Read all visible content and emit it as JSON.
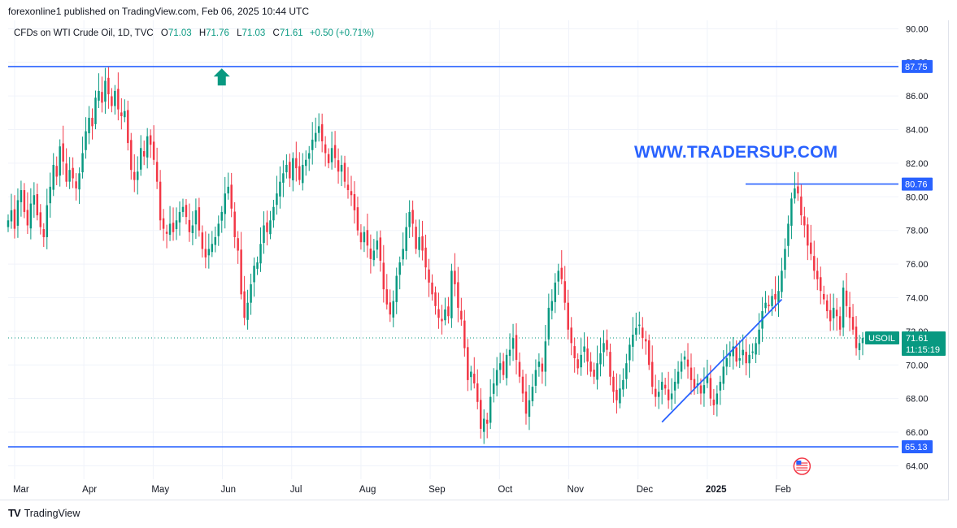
{
  "header": {
    "publisher_line": "forexonline1 published on TradingView.com, Feb 06, 2025 10:44 UTC"
  },
  "legend": {
    "symbol_desc": "CFDs on WTI Crude Oil, 1D, TVC",
    "o_label": "O",
    "o_value": "71.03",
    "h_label": "H",
    "h_value": "71.76",
    "l_label": "L",
    "l_value": "71.03",
    "c_label": "C",
    "c_value": "71.61",
    "change": "+0.50 (+0.71%)"
  },
  "annotation_text": "WWW.TRADERSUP.COM",
  "footer": {
    "brand": "TradingView",
    "logo": "TV"
  },
  "colors": {
    "up": "#089981",
    "down": "#f23645",
    "line": "#2962ff",
    "grid": "#f0f3fa",
    "price_tag": "#089981"
  },
  "chart_data": {
    "type": "candlestick",
    "y_range": [
      63.2,
      90.5
    ],
    "y_ticks": [
      "64.00",
      "66.00",
      "68.00",
      "70.00",
      "72.00",
      "74.00",
      "76.00",
      "78.00",
      "80.00",
      "82.00",
      "84.00",
      "86.00",
      "88.00",
      "90.00"
    ],
    "x_labels": [
      "Mar",
      "Apr",
      "May",
      "Jun",
      "Jul",
      "Aug",
      "Sep",
      "Oct",
      "Nov",
      "Dec",
      "2025",
      "Feb"
    ],
    "horizontal_levels": [
      {
        "value": 87.75,
        "label": "87.75",
        "span": "full"
      },
      {
        "value": 80.76,
        "label": "80.76",
        "span": "partial"
      },
      {
        "value": 65.13,
        "label": "65.13",
        "span": "full"
      }
    ],
    "trendline": {
      "from": {
        "date": "2024-12-09",
        "value": 66.6
      },
      "to": {
        "date": "2025-01-29",
        "value": 73.9
      }
    },
    "current_price": {
      "symbol": "USOIL",
      "value": "71.61",
      "countdown": "11:15:19",
      "numeric": 71.61
    },
    "up_arrow_marker": {
      "date": "2024-05-31",
      "value": 87.2
    },
    "closes": [
      78.6,
      79.2,
      78.1,
      79.8,
      80.4,
      79.1,
      78.3,
      79.6,
      80.1,
      78.9,
      78.2,
      77.6,
      79.5,
      80.6,
      81.9,
      81.2,
      83.0,
      82.1,
      80.9,
      81.6,
      81.1,
      80.5,
      81.4,
      82.6,
      83.9,
      84.7,
      84.2,
      85.9,
      86.3,
      85.6,
      86.9,
      86.1,
      85.4,
      86.3,
      85.2,
      84.8,
      85.1,
      83.2,
      81.6,
      81.0,
      81.5,
      82.9,
      82.4,
      83.6,
      83.1,
      82.2,
      80.9,
      78.6,
      78.1,
      77.8,
      78.4,
      77.9,
      78.6,
      79.1,
      79.4,
      78.8,
      77.9,
      78.3,
      79.2,
      78.0,
      76.9,
      76.4,
      76.9,
      77.2,
      77.6,
      78.4,
      79.1,
      80.2,
      80.6,
      79.3,
      77.6,
      76.8,
      74.2,
      72.8,
      73.7,
      74.8,
      75.9,
      76.1,
      77.2,
      78.3,
      77.9,
      78.6,
      79.4,
      80.2,
      80.9,
      81.4,
      81.9,
      81.1,
      82.3,
      81.7,
      81.0,
      81.9,
      82.2,
      82.6,
      83.4,
      83.8,
      84.2,
      83.3,
      82.6,
      82.0,
      82.9,
      82.3,
      81.5,
      81.9,
      80.9,
      80.4,
      80.1,
      79.2,
      78.0,
      77.3,
      77.9,
      77.1,
      76.3,
      76.8,
      77.4,
      76.2,
      74.5,
      73.6,
      73.0,
      73.8,
      75.3,
      76.1,
      76.9,
      78.2,
      79.1,
      78.4,
      76.9,
      77.6,
      76.8,
      75.8,
      74.9,
      74.2,
      73.5,
      72.8,
      72.6,
      73.3,
      72.9,
      75.6,
      74.8,
      73.4,
      72.7,
      71.0,
      69.1,
      69.6,
      68.9,
      67.8,
      66.2,
      66.8,
      66.5,
      68.1,
      68.9,
      69.7,
      70.1,
      69.4,
      70.6,
      70.9,
      71.6,
      70.3,
      69.3,
      68.3,
      67.1,
      67.9,
      68.7,
      69.7,
      70.2,
      69.6,
      71.4,
      73.4,
      73.8,
      74.9,
      75.6,
      75.1,
      73.7,
      72.1,
      71.3,
      70.4,
      69.8,
      70.6,
      71.1,
      70.2,
      69.6,
      69.3,
      70.1,
      70.7,
      71.3,
      70.9,
      69.3,
      68.4,
      67.9,
      68.6,
      69.1,
      70.1,
      71.2,
      71.8,
      72.2,
      72.4,
      71.6,
      71.4,
      70.0,
      68.7,
      68.1,
      68.4,
      69.0,
      68.6,
      67.9,
      68.3,
      69.0,
      69.6,
      70.2,
      70.5,
      69.9,
      69.1,
      68.6,
      68.9,
      68.3,
      68.8,
      69.4,
      68.0,
      67.6,
      68.3,
      69.0,
      69.9,
      70.4,
      70.7,
      71.1,
      70.2,
      70.4,
      70.9,
      70.1,
      70.6,
      70.8,
      71.3,
      72.1,
      73.2,
      73.7,
      73.5,
      74.1,
      73.9,
      74.4,
      75.6,
      76.9,
      78.4,
      79.9,
      80.5,
      80.2,
      78.9,
      78.3,
      77.1,
      76.6,
      75.6,
      75.1,
      74.4,
      73.9,
      73.2,
      72.6,
      73.4,
      72.9,
      72.1,
      74.6,
      73.5,
      72.8,
      72.1,
      71.0,
      71.3,
      71.6
    ]
  }
}
